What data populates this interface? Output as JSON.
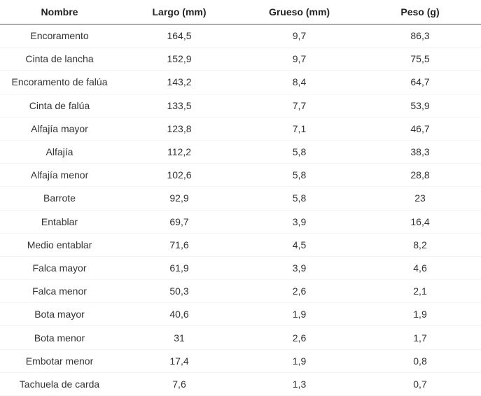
{
  "table": {
    "header": [
      "Nombre",
      "Largo (mm)",
      "Grueso (mm)",
      "Peso (g)"
    ],
    "rows": [
      [
        "Encoramento",
        "164,5",
        "9,7",
        "86,3"
      ],
      [
        "Cinta de lancha",
        "152,9",
        "9,7",
        "75,5"
      ],
      [
        "Encoramento de falúa",
        "143,2",
        "8,4",
        "64,7"
      ],
      [
        "Cinta de falúa",
        "133,5",
        "7,7",
        "53,9"
      ],
      [
        "Alfajía mayor",
        "123,8",
        "7,1",
        "46,7"
      ],
      [
        "Alfajía",
        "112,2",
        "5,8",
        "38,3"
      ],
      [
        "Alfajía menor",
        "102,6",
        "5,8",
        "28,8"
      ],
      [
        "Barrote",
        "92,9",
        "5,8",
        "23"
      ],
      [
        "Entablar",
        "69,7",
        "3,9",
        "16,4"
      ],
      [
        "Medio entablar",
        "71,6",
        "4,5",
        "8,2"
      ],
      [
        "Falca mayor",
        "61,9",
        "3,9",
        "4,6"
      ],
      [
        "Falca menor",
        "50,3",
        "2,6",
        "2,1"
      ],
      [
        "Bota mayor",
        "40,6",
        "1,9",
        "1,9"
      ],
      [
        "Bota menor",
        "31",
        "2,6",
        "1,7"
      ],
      [
        "Embotar menor",
        "17,4",
        "1,9",
        "0,8"
      ],
      [
        "Tachuela de carda",
        "7,6",
        "1,3",
        "0,7"
      ]
    ]
  }
}
